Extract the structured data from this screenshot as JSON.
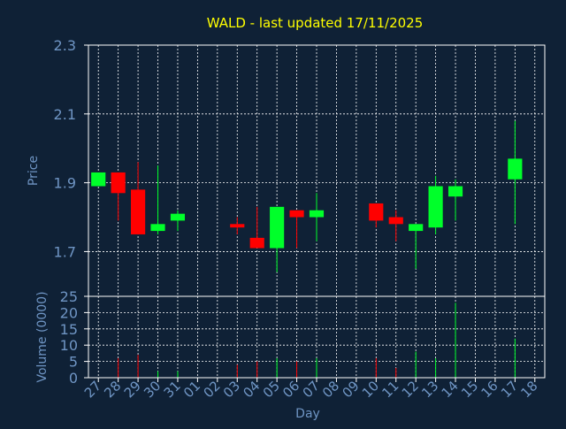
{
  "colors": {
    "background": "#0f2136",
    "title": "#ffff00",
    "axis_text": "#6f95c4",
    "frame": "#ffffff",
    "grid": "#ffffff",
    "up": "#00ff2a",
    "down": "#ff0000"
  },
  "chart_data": {
    "type": "candlestick",
    "title": "WALD - last updated 17/11/2025",
    "xlabel": "Day",
    "grid": true,
    "categories": [
      "27",
      "28",
      "29",
      "30",
      "31",
      "01",
      "02",
      "03",
      "04",
      "05",
      "06",
      "07",
      "08",
      "09",
      "10",
      "11",
      "12",
      "13",
      "14",
      "15",
      "16",
      "17",
      "18"
    ],
    "price_panel": {
      "ylabel": "Price",
      "ylim": [
        1.57,
        2.3
      ],
      "yticks": [
        "2.3",
        "2.1",
        "1.9",
        "1.7"
      ],
      "candles": [
        {
          "day": "27",
          "open": 1.89,
          "high": 1.93,
          "low": 1.89,
          "close": 1.93
        },
        {
          "day": "28",
          "open": 1.93,
          "high": 1.93,
          "low": 1.79,
          "close": 1.87
        },
        {
          "day": "29",
          "open": 1.88,
          "high": 1.96,
          "low": 1.75,
          "close": 1.75
        },
        {
          "day": "30",
          "open": 1.76,
          "high": 1.95,
          "low": 1.75,
          "close": 1.78
        },
        {
          "day": "31",
          "open": 1.79,
          "high": 1.82,
          "low": 1.76,
          "close": 1.81
        },
        {
          "day": "03",
          "open": 1.78,
          "high": 1.8,
          "low": 1.75,
          "close": 1.77
        },
        {
          "day": "04",
          "open": 1.74,
          "high": 1.83,
          "low": 1.71,
          "close": 1.71
        },
        {
          "day": "05",
          "open": 1.71,
          "high": 1.83,
          "low": 1.64,
          "close": 1.83
        },
        {
          "day": "06",
          "open": 1.82,
          "high": 1.82,
          "low": 1.71,
          "close": 1.8
        },
        {
          "day": "07",
          "open": 1.8,
          "high": 1.87,
          "low": 1.73,
          "close": 1.82
        },
        {
          "day": "10",
          "open": 1.84,
          "high": 1.84,
          "low": 1.77,
          "close": 1.79
        },
        {
          "day": "11",
          "open": 1.8,
          "high": 1.82,
          "low": 1.73,
          "close": 1.78
        },
        {
          "day": "12",
          "open": 1.76,
          "high": 1.78,
          "low": 1.65,
          "close": 1.78
        },
        {
          "day": "13",
          "open": 1.77,
          "high": 1.92,
          "low": 1.75,
          "close": 1.89
        },
        {
          "day": "14",
          "open": 1.86,
          "high": 1.91,
          "low": 1.79,
          "close": 1.89
        },
        {
          "day": "17",
          "open": 1.91,
          "high": 2.08,
          "low": 1.78,
          "close": 1.97
        }
      ]
    },
    "volume_panel": {
      "ylabel": "Volume (0000)",
      "ylim": [
        0,
        25
      ],
      "yticks": [
        "25",
        "20",
        "15",
        "10",
        "5",
        "0"
      ],
      "bars": [
        {
          "day": "28",
          "value": 6,
          "direction": "down"
        },
        {
          "day": "29",
          "value": 7,
          "direction": "down"
        },
        {
          "day": "30",
          "value": 2,
          "direction": "up"
        },
        {
          "day": "31",
          "value": 2,
          "direction": "up"
        },
        {
          "day": "03",
          "value": 4,
          "direction": "down"
        },
        {
          "day": "04",
          "value": 5,
          "direction": "down"
        },
        {
          "day": "05",
          "value": 6,
          "direction": "up"
        },
        {
          "day": "06",
          "value": 5,
          "direction": "down"
        },
        {
          "day": "07",
          "value": 6,
          "direction": "up"
        },
        {
          "day": "10",
          "value": 6,
          "direction": "down"
        },
        {
          "day": "11",
          "value": 3,
          "direction": "down"
        },
        {
          "day": "12",
          "value": 8,
          "direction": "up"
        },
        {
          "day": "13",
          "value": 6,
          "direction": "up"
        },
        {
          "day": "14",
          "value": 23,
          "direction": "up"
        },
        {
          "day": "17",
          "value": 12,
          "direction": "up"
        }
      ]
    }
  }
}
